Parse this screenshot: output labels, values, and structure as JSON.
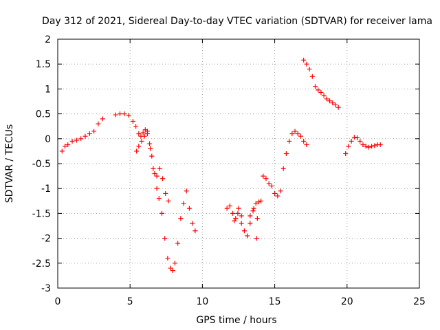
{
  "chart_data": {
    "type": "scatter",
    "title": "Day 312 of 2021, Sidereal Day-to-day VTEC variation (SDTVAR) for receiver lama",
    "xlabel": "GPS time / hours",
    "ylabel": "SDTVAR / TECUs",
    "xlim": [
      0,
      25
    ],
    "ylim": [
      -3,
      2
    ],
    "x_ticks": [
      0,
      5,
      10,
      15,
      20,
      25
    ],
    "y_ticks": [
      2,
      1.5,
      1,
      0.5,
      0,
      -0.5,
      -1,
      -1.5,
      -2,
      -2.5,
      -3
    ],
    "x_tick_labels": [
      "0",
      "5",
      "10",
      "15",
      "20",
      "25"
    ],
    "y_tick_labels": [
      "2",
      "1.5",
      "1",
      "0.5",
      "0",
      "-0.5",
      "-1",
      "-1.5",
      "-2",
      "-2.5",
      "-3"
    ],
    "grid": true,
    "marker": "plus",
    "color": "#ff0000",
    "series": [
      {
        "points": [
          [
            0.3,
            -0.25
          ],
          [
            0.5,
            -0.15
          ],
          [
            0.7,
            -0.12
          ],
          [
            1.0,
            -0.05
          ],
          [
            1.3,
            -0.03
          ],
          [
            1.6,
            0.0
          ],
          [
            1.9,
            0.05
          ],
          [
            2.2,
            0.1
          ],
          [
            2.5,
            0.15
          ],
          [
            2.8,
            0.3
          ],
          [
            3.1,
            0.4
          ],
          [
            4.0,
            0.48
          ],
          [
            4.3,
            0.5
          ],
          [
            4.6,
            0.5
          ],
          [
            4.9,
            0.47
          ],
          [
            5.2,
            0.35
          ],
          [
            5.4,
            0.25
          ],
          [
            5.6,
            0.1
          ],
          [
            5.75,
            0.05
          ],
          [
            5.9,
            0.12
          ],
          [
            6.05,
            0.18
          ],
          [
            6.2,
            0.1
          ],
          [
            6.35,
            -0.1
          ],
          [
            6.5,
            -0.35
          ],
          [
            6.7,
            -0.7
          ],
          [
            6.85,
            -1.0
          ],
          [
            7.0,
            -1.2
          ],
          [
            7.2,
            -1.5
          ],
          [
            7.4,
            -2.0
          ],
          [
            7.6,
            -2.4
          ],
          [
            7.8,
            -2.6
          ],
          [
            7.95,
            -2.65
          ],
          [
            8.1,
            -2.5
          ],
          [
            8.3,
            -2.1
          ],
          [
            8.5,
            -1.6
          ],
          [
            8.7,
            -1.3
          ],
          [
            8.9,
            -1.05
          ],
          [
            9.1,
            -1.4
          ],
          [
            9.3,
            -1.7
          ],
          [
            9.5,
            -1.85
          ]
        ]
      },
      {
        "points": [
          [
            5.45,
            -0.25
          ],
          [
            5.6,
            -0.15
          ],
          [
            5.8,
            -0.05
          ],
          [
            6.0,
            0.05
          ],
          [
            6.2,
            0.15
          ],
          [
            6.4,
            -0.2
          ],
          [
            6.6,
            -0.6
          ],
          [
            6.85,
            -0.75
          ],
          [
            7.05,
            -0.6
          ],
          [
            7.25,
            -0.8
          ],
          [
            7.45,
            -1.1
          ],
          [
            7.65,
            -1.25
          ]
        ]
      },
      {
        "points": [
          [
            11.7,
            -1.4
          ],
          [
            11.9,
            -1.35
          ],
          [
            12.1,
            -1.5
          ],
          [
            12.3,
            -1.6
          ],
          [
            12.5,
            -1.4
          ],
          [
            12.7,
            -1.7
          ],
          [
            12.9,
            -1.85
          ],
          [
            13.1,
            -1.95
          ],
          [
            13.3,
            -1.7
          ],
          [
            13.5,
            -1.45
          ],
          [
            13.7,
            -1.3
          ],
          [
            13.9,
            -1.27
          ],
          [
            14.05,
            -1.25
          ]
        ]
      },
      {
        "points": [
          [
            12.2,
            -1.65
          ],
          [
            12.45,
            -1.5
          ],
          [
            12.7,
            -1.55
          ],
          [
            13.3,
            -1.55
          ],
          [
            13.55,
            -1.4
          ],
          [
            13.75,
            -2.0
          ],
          [
            13.8,
            -1.6
          ]
        ]
      },
      {
        "points": [
          [
            14.2,
            -0.75
          ],
          [
            14.4,
            -0.8
          ],
          [
            14.6,
            -0.9
          ],
          [
            14.8,
            -0.95
          ],
          [
            15.0,
            -1.1
          ],
          [
            15.2,
            -1.15
          ],
          [
            15.4,
            -1.05
          ],
          [
            15.6,
            -0.6
          ],
          [
            15.8,
            -0.3
          ],
          [
            16.0,
            -0.05
          ],
          [
            16.2,
            0.1
          ],
          [
            16.4,
            0.15
          ],
          [
            16.6,
            0.1
          ],
          [
            16.8,
            0.05
          ],
          [
            17.0,
            -0.05
          ],
          [
            17.2,
            -0.12
          ]
        ]
      },
      {
        "points": [
          [
            17.0,
            1.58
          ],
          [
            17.2,
            1.5
          ],
          [
            17.4,
            1.4
          ],
          [
            17.6,
            1.25
          ],
          [
            17.8,
            1.05
          ],
          [
            18.0,
            0.98
          ],
          [
            18.2,
            0.93
          ],
          [
            18.4,
            0.87
          ],
          [
            18.6,
            0.8
          ],
          [
            18.8,
            0.76
          ],
          [
            19.0,
            0.72
          ],
          [
            19.2,
            0.68
          ],
          [
            19.4,
            0.63
          ]
        ]
      },
      {
        "points": [
          [
            19.9,
            -0.3
          ],
          [
            20.1,
            -0.15
          ],
          [
            20.3,
            -0.05
          ],
          [
            20.5,
            0.03
          ],
          [
            20.7,
            0.02
          ],
          [
            20.9,
            -0.05
          ],
          [
            21.1,
            -0.12
          ],
          [
            21.3,
            -0.15
          ],
          [
            21.5,
            -0.17
          ],
          [
            21.7,
            -0.15
          ],
          [
            21.9,
            -0.14
          ],
          [
            22.1,
            -0.12
          ],
          [
            22.3,
            -0.12
          ]
        ]
      }
    ]
  }
}
